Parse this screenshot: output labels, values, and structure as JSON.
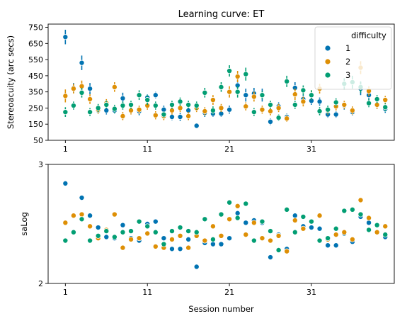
{
  "chart_data": [
    {
      "type": "scatter",
      "title": "Learning curve: ET",
      "xlabel": "",
      "ylabel": "Stereoacuity (arc secs)",
      "xlim": [
        -1.1,
        41.1
      ],
      "ylim": [
        50,
        770
      ],
      "xticks": [
        1,
        11,
        21,
        31
      ],
      "yticks": [
        50,
        150,
        250,
        350,
        450,
        550,
        650,
        750
      ],
      "error_bars": true,
      "legend": {
        "title": "difficulty",
        "placement": "top-right",
        "entries": [
          "1",
          "2",
          "3"
        ]
      },
      "series": [
        {
          "name": "1",
          "color": "#0173b2",
          "x": [
            1,
            2,
            3,
            4,
            5,
            6,
            7,
            8,
            9,
            10,
            11,
            12,
            13,
            14,
            15,
            16,
            17,
            18,
            19,
            20,
            21,
            22,
            23,
            24,
            25,
            26,
            27,
            28,
            29,
            30,
            31,
            32,
            33,
            34,
            35,
            36,
            37,
            38,
            39,
            40
          ],
          "y": [
            690,
            375,
            530,
            370,
            235,
            235,
            235,
            310,
            235,
            230,
            315,
            330,
            240,
            195,
            195,
            235,
            140,
            220,
            215,
            215,
            240,
            390,
            330,
            340,
            330,
            165,
            260,
            195,
            375,
            305,
            295,
            290,
            210,
            210,
            265,
            225,
            370,
            330,
            270,
            245
          ],
          "err": [
            45,
            30,
            45,
            35,
            20,
            25,
            20,
            35,
            20,
            25,
            20,
            20,
            25,
            20,
            25,
            25,
            15,
            25,
            20,
            20,
            25,
            35,
            40,
            35,
            40,
            20,
            25,
            20,
            35,
            25,
            25,
            25,
            20,
            20,
            25,
            20,
            40,
            35,
            25,
            25
          ]
        },
        {
          "name": "2",
          "color": "#de8f05",
          "x": [
            1,
            2,
            3,
            4,
            5,
            6,
            7,
            8,
            9,
            10,
            11,
            12,
            13,
            14,
            15,
            16,
            17,
            18,
            19,
            20,
            21,
            22,
            23,
            24,
            25,
            26,
            27,
            28,
            29,
            30,
            31,
            32,
            33,
            34,
            35,
            36,
            37,
            38,
            39,
            40
          ],
          "y": [
            325,
            370,
            385,
            305,
            240,
            280,
            380,
            200,
            235,
            240,
            265,
            205,
            200,
            235,
            250,
            200,
            250,
            230,
            300,
            250,
            350,
            445,
            260,
            320,
            240,
            230,
            250,
            185,
            335,
            290,
            330,
            370,
            235,
            260,
            270,
            235,
            500,
            355,
            270,
            300
          ],
          "err": [
            40,
            30,
            35,
            30,
            25,
            25,
            30,
            25,
            25,
            25,
            25,
            25,
            25,
            25,
            25,
            25,
            25,
            25,
            30,
            25,
            35,
            35,
            25,
            30,
            25,
            25,
            25,
            20,
            35,
            30,
            30,
            30,
            25,
            25,
            25,
            25,
            40,
            30,
            25,
            25
          ]
        },
        {
          "name": "3",
          "color": "#029e73",
          "x": [
            1,
            2,
            3,
            4,
            5,
            6,
            7,
            8,
            9,
            10,
            11,
            12,
            13,
            14,
            15,
            16,
            17,
            18,
            19,
            20,
            21,
            22,
            23,
            24,
            25,
            26,
            27,
            28,
            29,
            30,
            31,
            32,
            33,
            34,
            35,
            36,
            37,
            38,
            39,
            40
          ],
          "y": [
            225,
            265,
            345,
            225,
            250,
            270,
            245,
            265,
            270,
            330,
            300,
            265,
            210,
            270,
            290,
            270,
            265,
            345,
            235,
            380,
            480,
            350,
            460,
            225,
            330,
            270,
            190,
            415,
            270,
            360,
            330,
            230,
            240,
            285,
            400,
            410,
            380,
            280,
            305,
            255
          ],
          "err": [
            30,
            25,
            30,
            25,
            25,
            25,
            25,
            25,
            25,
            30,
            30,
            25,
            20,
            25,
            25,
            25,
            25,
            30,
            25,
            30,
            35,
            35,
            40,
            25,
            25,
            25,
            20,
            35,
            25,
            30,
            30,
            25,
            25,
            25,
            35,
            40,
            35,
            25,
            25,
            25
          ]
        }
      ]
    },
    {
      "type": "scatter",
      "title": "",
      "xlabel": "Session number",
      "ylabel": "saLog",
      "xlim": [
        -1.1,
        41.1
      ],
      "ylim": [
        2,
        3
      ],
      "xticks": [
        1,
        11,
        21,
        31
      ],
      "yticks": [
        2,
        3
      ],
      "series": [
        {
          "name": "1",
          "color": "#0173b2",
          "x": [
            1,
            2,
            3,
            4,
            5,
            6,
            7,
            8,
            9,
            10,
            11,
            12,
            13,
            14,
            15,
            16,
            17,
            18,
            19,
            20,
            21,
            22,
            23,
            24,
            25,
            26,
            27,
            28,
            29,
            30,
            31,
            32,
            33,
            34,
            35,
            36,
            37,
            38,
            39,
            40
          ],
          "y": [
            2.84,
            2.43,
            2.72,
            2.57,
            2.47,
            2.39,
            2.38,
            2.49,
            2.38,
            2.36,
            2.5,
            2.52,
            2.38,
            2.29,
            2.29,
            2.37,
            2.14,
            2.34,
            2.33,
            2.33,
            2.38,
            2.59,
            2.51,
            2.53,
            2.51,
            2.22,
            2.41,
            2.29,
            2.57,
            2.48,
            2.47,
            2.46,
            2.32,
            2.32,
            2.42,
            2.35,
            2.56,
            2.51,
            2.43,
            2.39
          ]
        },
        {
          "name": "2",
          "color": "#de8f05",
          "x": [
            1,
            2,
            3,
            4,
            5,
            6,
            7,
            8,
            9,
            10,
            11,
            12,
            13,
            14,
            15,
            16,
            17,
            18,
            19,
            20,
            21,
            22,
            23,
            24,
            25,
            26,
            27,
            28,
            29,
            30,
            31,
            32,
            33,
            34,
            35,
            36,
            37,
            38,
            39,
            40
          ],
          "y": [
            2.51,
            2.57,
            2.58,
            2.48,
            2.38,
            2.45,
            2.58,
            2.3,
            2.37,
            2.38,
            2.42,
            2.31,
            2.3,
            2.37,
            2.4,
            2.3,
            2.4,
            2.36,
            2.48,
            2.4,
            2.54,
            2.65,
            2.41,
            2.51,
            2.38,
            2.36,
            2.4,
            2.27,
            2.53,
            2.46,
            2.52,
            2.57,
            2.37,
            2.41,
            2.43,
            2.37,
            2.7,
            2.55,
            2.43,
            2.48
          ]
        },
        {
          "name": "3",
          "color": "#029e73",
          "x": [
            1,
            2,
            3,
            4,
            5,
            6,
            7,
            8,
            9,
            10,
            11,
            12,
            13,
            14,
            15,
            16,
            17,
            18,
            19,
            20,
            21,
            22,
            23,
            24,
            25,
            26,
            27,
            28,
            29,
            30,
            31,
            32,
            33,
            34,
            35,
            36,
            37,
            38,
            39,
            40
          ],
          "y": [
            2.36,
            2.43,
            2.54,
            2.36,
            2.4,
            2.44,
            2.39,
            2.43,
            2.44,
            2.52,
            2.48,
            2.43,
            2.33,
            2.44,
            2.47,
            2.44,
            2.43,
            2.54,
            2.37,
            2.58,
            2.68,
            2.55,
            2.67,
            2.36,
            2.52,
            2.44,
            2.28,
            2.62,
            2.43,
            2.56,
            2.52,
            2.36,
            2.38,
            2.46,
            2.61,
            2.62,
            2.58,
            2.45,
            2.49,
            2.41
          ]
        }
      ]
    }
  ]
}
